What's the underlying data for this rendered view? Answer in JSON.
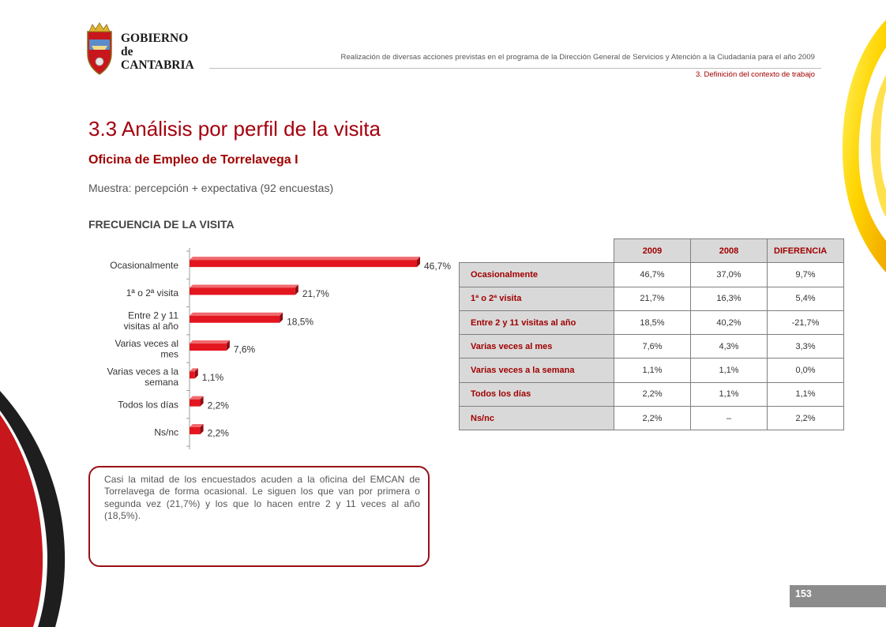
{
  "header": {
    "org_line1": "GOBIERNO",
    "org_line2": "de",
    "org_line3": "CANTABRIA",
    "report_title": "Realización de diversas acciones previstas en el programa de la Dirección General de Servicios y Atención a la Ciudadanía para el año 2009",
    "section": "3. Definición del contexto de trabajo"
  },
  "page": {
    "title": "3.3 Análisis por perfil de la visita",
    "subtitle": "Oficina de Empleo de Torrelavega I",
    "sample": "Muestra: percepción + expectativa (92 encuestas)",
    "chart_heading": "FRECUENCIA DE LA VISITA",
    "page_number": "153"
  },
  "chart_data": {
    "type": "bar",
    "orientation": "horizontal",
    "title": "FRECUENCIA DE LA VISITA",
    "categories": [
      "Ocasionalmente",
      "1ª o 2ª visita",
      "Entre 2 y 11 visitas al año",
      "Varias veces al mes",
      "Varias veces a la semana",
      "Todos los días",
      "Ns/nc"
    ],
    "category_lines": [
      [
        "Ocasionalmente"
      ],
      [
        "1ª o 2ª visita"
      ],
      [
        "Entre 2 y 11",
        "visitas al año"
      ],
      [
        "Varias veces al",
        "mes"
      ],
      [
        "Varias veces a la",
        "semana"
      ],
      [
        "Todos los días"
      ],
      [
        "Ns/nc"
      ]
    ],
    "values": [
      46.7,
      21.7,
      18.5,
      7.6,
      1.1,
      2.2,
      2.2
    ],
    "value_labels": [
      "46,7%",
      "21,7%",
      "18,5%",
      "7,6%",
      "1,1%",
      "2,2%",
      "2,2%"
    ],
    "xlim": [
      0,
      46.7
    ],
    "bar_color": "#e3161f",
    "grid": false,
    "legend": "none"
  },
  "table": {
    "headers": [
      "2009",
      "2008",
      "DIFERENCIA"
    ],
    "rows": [
      {
        "label": "Ocasionalmente",
        "v2009": "46,7%",
        "v2008": "37,0%",
        "diff": "9,7%"
      },
      {
        "label": "1ª o 2ª visita",
        "v2009": "21,7%",
        "v2008": "16,3%",
        "diff": "5,4%"
      },
      {
        "label": "Entre 2 y 11 visitas al año",
        "v2009": "18,5%",
        "v2008": "40,2%",
        "diff": "-21,7%"
      },
      {
        "label": "Varias veces al mes",
        "v2009": "7,6%",
        "v2008": "4,3%",
        "diff": "3,3%"
      },
      {
        "label": "Varias veces a la semana",
        "v2009": "1,1%",
        "v2008": "1,1%",
        "diff": "0,0%"
      },
      {
        "label": "Todos los días",
        "v2009": "2,2%",
        "v2008": "1,1%",
        "diff": "1,1%"
      },
      {
        "label": "Ns/nc",
        "v2009": "2,2%",
        "v2008": "–",
        "diff": "2,2%"
      }
    ]
  },
  "note": {
    "text": "Casi la mitad de los encuestados acuden a la oficina del EMCAN de Torrelavega de forma ocasional. Le siguen los que van por primera o segunda vez (21,7%) y los que lo hacen entre 2 y 11 veces al año (18,5%)."
  },
  "colors": {
    "accent": "#a00000",
    "bar": "#e3161f",
    "table_header": "#d9d9d9",
    "note_border": "#9a0f18",
    "page_bar": "#8c8c8c"
  }
}
